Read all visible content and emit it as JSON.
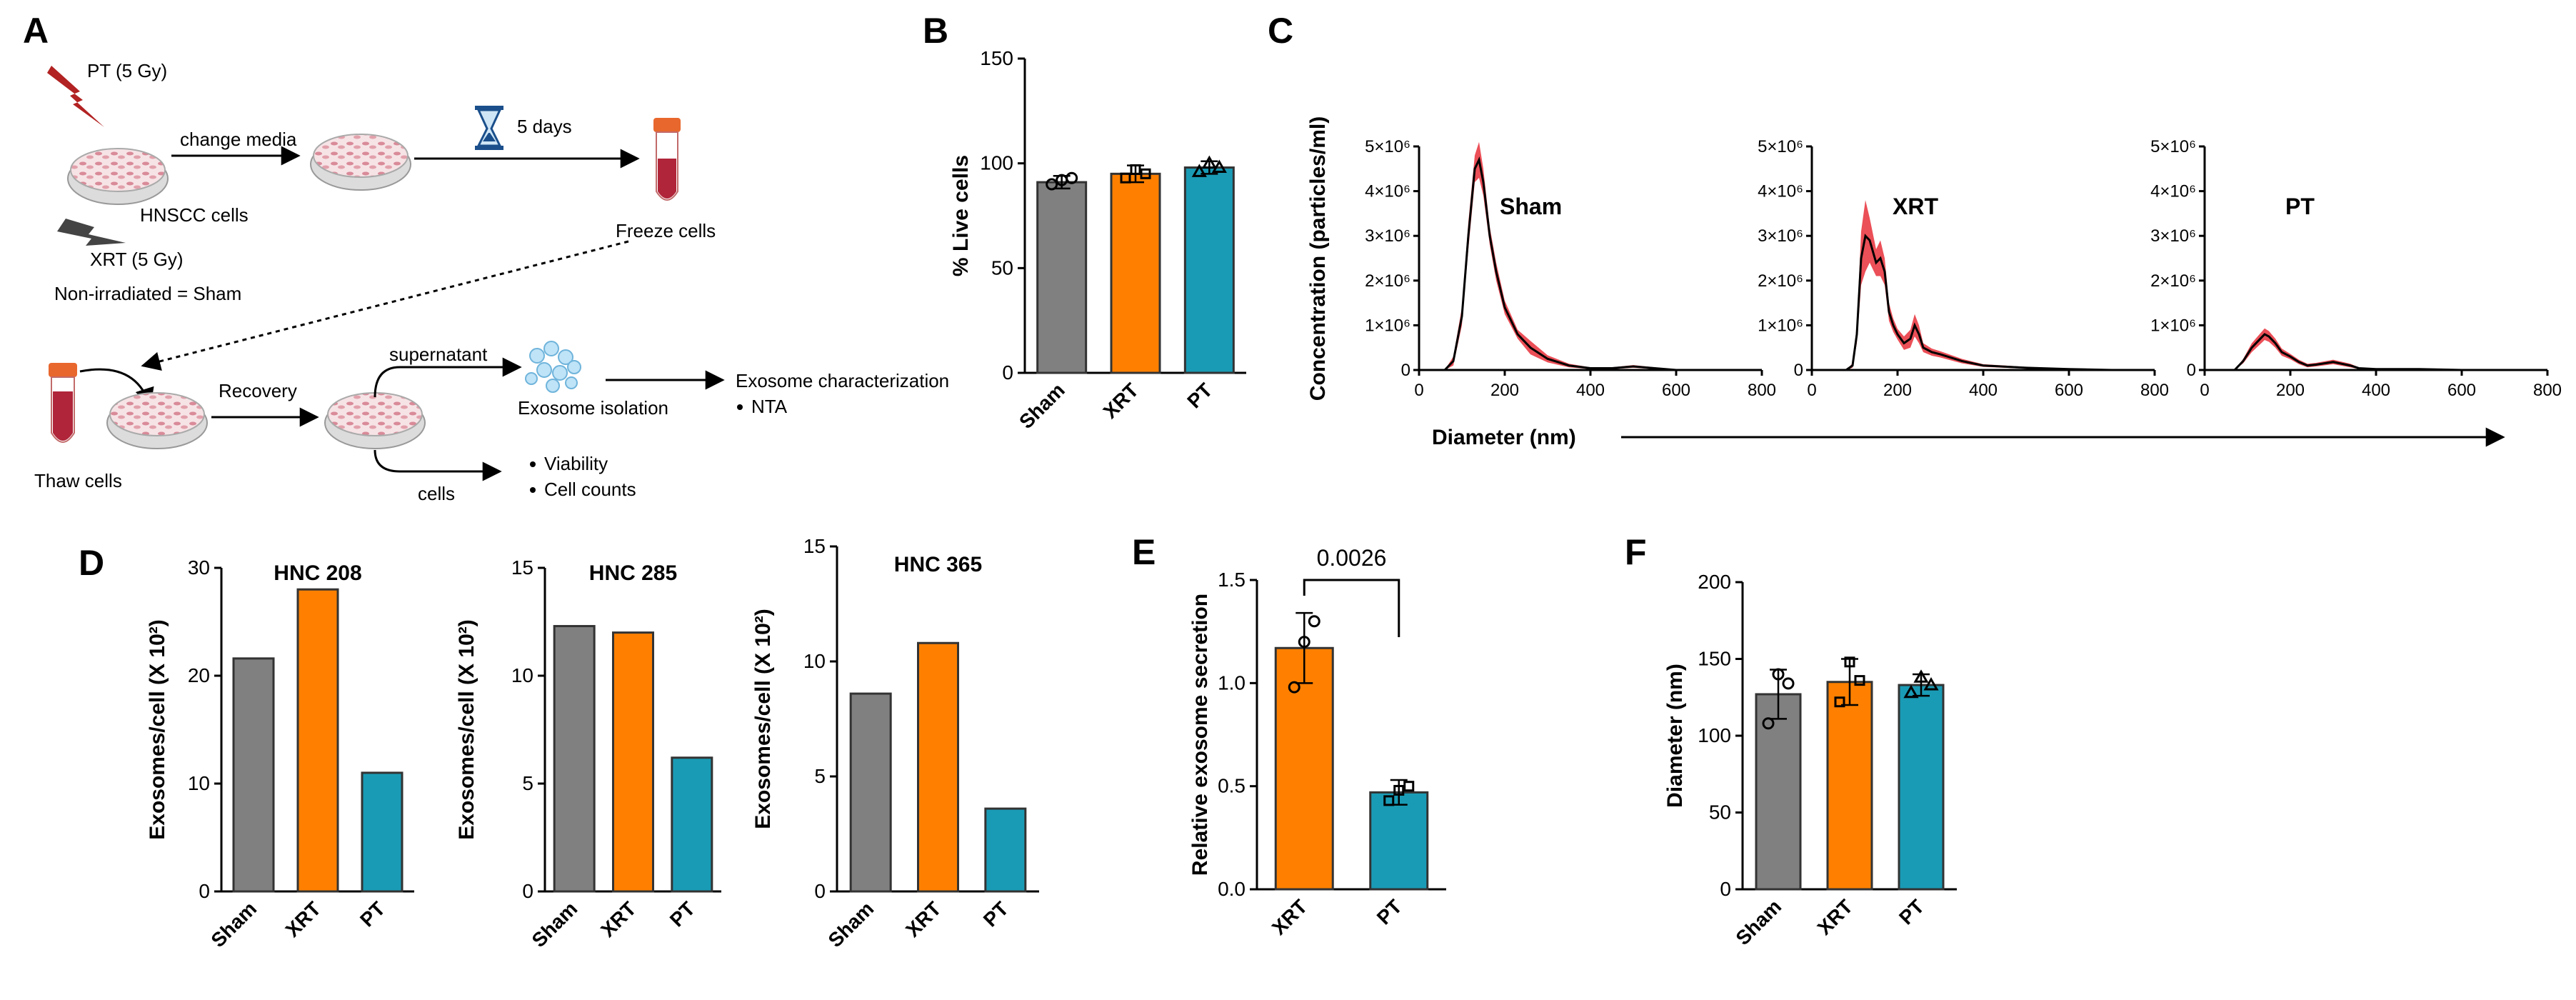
{
  "figure": {
    "panel_labels": [
      "A",
      "B",
      "C",
      "D",
      "E",
      "F"
    ]
  },
  "schematic": {
    "pt_label": "PT (5 Gy)",
    "change_media": "change media",
    "five_days": "5 days",
    "hnscc": "HNSCC cells",
    "freeze": "Freeze cells",
    "xrt_label": "XRT (5 Gy)",
    "sham_note": "Non-irradiated = Sham",
    "thaw": "Thaw cells",
    "recovery": "Recovery",
    "supernatant": "supernatant",
    "isolation": "Exosome isolation",
    "characterization": "Exosome characterization",
    "nta": "NTA",
    "cells": "cells",
    "viability": "Viability",
    "cell_counts": "Cell counts"
  },
  "colors": {
    "sham": "#808080",
    "xrt": "#ff8000",
    "pt": "#1a9bb5",
    "line": "#000000",
    "band": "#e8303a",
    "lightning_red": "#b22222",
    "lightning_gray": "#444444"
  },
  "chart_data": [
    {
      "id": "B",
      "type": "bar",
      "categories": [
        "Sham",
        "XRT",
        "PT"
      ],
      "values": [
        91,
        95,
        98
      ],
      "errors": [
        3,
        4,
        3
      ],
      "points": [
        [
          90,
          92,
          93
        ],
        [
          93,
          97,
          95
        ],
        [
          96,
          100,
          98
        ]
      ],
      "ylabel": "% Live cells",
      "ylim": [
        0,
        150
      ],
      "yticks": [
        "0",
        "50",
        "100",
        "150"
      ]
    },
    {
      "id": "C",
      "type": "line",
      "title": "Concentration (particles/ml)",
      "xlabel": "Diameter (nm)",
      "xlim": [
        0,
        800
      ],
      "ylim": [
        0,
        5000000
      ],
      "xticks": [
        "0",
        "200",
        "400",
        "600",
        "800"
      ],
      "yticks": [
        "0",
        "1×10⁶",
        "2×10⁶",
        "3×10⁶",
        "4×10⁶",
        "5×10⁶"
      ],
      "series": [
        {
          "name": "Sham",
          "x": [
            0,
            60,
            80,
            100,
            115,
            130,
            140,
            150,
            165,
            180,
            200,
            230,
            260,
            300,
            350,
            400,
            450,
            500,
            550,
            600,
            700
          ],
          "y": [
            0,
            0,
            200000,
            1200000,
            3000000,
            4500000,
            4700000,
            4200000,
            3000000,
            2200000,
            1400000,
            800000,
            500000,
            250000,
            100000,
            40000,
            40000,
            80000,
            40000,
            0,
            0
          ],
          "band": [
            0,
            0,
            100000,
            200000,
            300000,
            300000,
            400000,
            300000,
            200000,
            200000,
            150000,
            100000,
            150000,
            80000,
            40000,
            20000,
            20000,
            30000,
            20000,
            0,
            0
          ]
        },
        {
          "name": "XRT",
          "x": [
            0,
            80,
            95,
            105,
            115,
            125,
            135,
            150,
            160,
            170,
            180,
            190,
            200,
            215,
            230,
            240,
            250,
            260,
            280,
            300,
            350,
            400,
            500,
            600,
            700
          ],
          "y": [
            0,
            0,
            100000,
            800000,
            2500000,
            3000000,
            2900000,
            2400000,
            2500000,
            2200000,
            1300000,
            1000000,
            800000,
            600000,
            700000,
            1000000,
            800000,
            500000,
            400000,
            350000,
            200000,
            100000,
            50000,
            20000,
            0
          ],
          "band": [
            0,
            0,
            50000,
            200000,
            600000,
            800000,
            500000,
            300000,
            400000,
            300000,
            200000,
            150000,
            120000,
            150000,
            200000,
            250000,
            200000,
            100000,
            80000,
            70000,
            50000,
            30000,
            20000,
            10000,
            0
          ]
        },
        {
          "name": "PT",
          "x": [
            0,
            70,
            90,
            110,
            130,
            140,
            150,
            165,
            180,
            200,
            220,
            240,
            260,
            300,
            340,
            360,
            400,
            500,
            600,
            700
          ],
          "y": [
            0,
            0,
            200000,
            500000,
            700000,
            800000,
            750000,
            600000,
            400000,
            300000,
            180000,
            100000,
            120000,
            180000,
            100000,
            40000,
            20000,
            20000,
            0,
            0
          ],
          "band": [
            0,
            0,
            50000,
            100000,
            120000,
            130000,
            120000,
            100000,
            80000,
            60000,
            50000,
            40000,
            40000,
            50000,
            40000,
            20000,
            10000,
            10000,
            0,
            0
          ]
        }
      ]
    },
    {
      "id": "D",
      "type": "bar",
      "ylabel": "Exosomes/cell (X 10²)",
      "panels": [
        {
          "title": "HNC 208",
          "categories": [
            "Sham",
            "XRT",
            "PT"
          ],
          "values": [
            21.6,
            28,
            11
          ],
          "ylim": [
            0,
            30
          ],
          "yticks": [
            "0",
            "10",
            "20",
            "30"
          ]
        },
        {
          "title": "HNC 285",
          "categories": [
            "Sham",
            "XRT",
            "PT"
          ],
          "values": [
            12.3,
            12,
            6.2
          ],
          "ylim": [
            0,
            15
          ],
          "yticks": [
            "0",
            "5",
            "10",
            "15"
          ]
        },
        {
          "title": "HNC 365",
          "categories": [
            "Sham",
            "XRT",
            "PT"
          ],
          "values": [
            8.6,
            10.8,
            3.6
          ],
          "ylim": [
            0,
            15
          ],
          "yticks": [
            "0",
            "5",
            "10",
            "15"
          ]
        }
      ]
    },
    {
      "id": "E",
      "type": "bar",
      "categories": [
        "XRT",
        "PT"
      ],
      "values": [
        1.17,
        0.47
      ],
      "errors": [
        0.17,
        0.06
      ],
      "points": [
        [
          0.98,
          1.2,
          1.3
        ],
        [
          0.43,
          0.48,
          0.5
        ]
      ],
      "ylabel": "Relative exosome secretion",
      "ylim": [
        0,
        1.5
      ],
      "yticks": [
        "0.0",
        "0.5",
        "1.0",
        "1.5"
      ],
      "annotation": "0.0026"
    },
    {
      "id": "F",
      "type": "bar",
      "categories": [
        "Sham",
        "XRT",
        "PT"
      ],
      "values": [
        127,
        135,
        133
      ],
      "errors": [
        16,
        15,
        7
      ],
      "points": [
        [
          108,
          140,
          134
        ],
        [
          122,
          148,
          136
        ],
        [
          128,
          138,
          133
        ]
      ],
      "ylabel": "Diameter (nm)",
      "ylim": [
        0,
        200
      ],
      "yticks": [
        "0",
        "50",
        "100",
        "150",
        "200"
      ]
    }
  ]
}
